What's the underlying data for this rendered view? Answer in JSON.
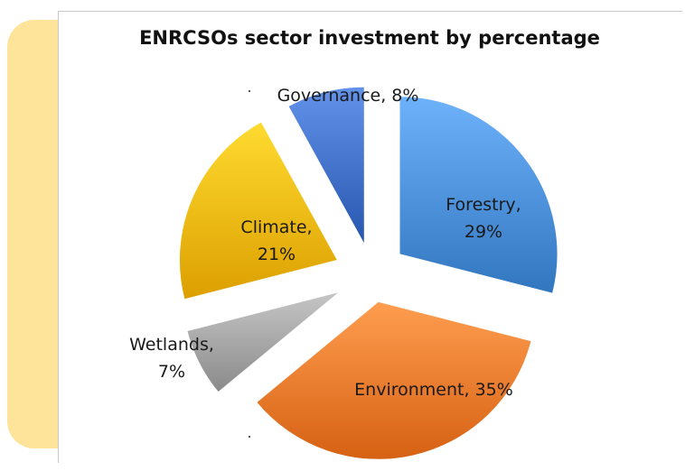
{
  "chart_data": {
    "type": "pie",
    "title": "ENRCSOs sector investment by percentage",
    "slices": [
      {
        "label": "Forestry",
        "value": 29,
        "value_label": "29%",
        "color": "#4a8fd8"
      },
      {
        "label": "Environment",
        "value": 35,
        "value_label": "35%",
        "color": "#ef7a2c"
      },
      {
        "label": "Wetlands",
        "value": 7,
        "value_label": "7%",
        "color": "#a3a3a3"
      },
      {
        "label": "Climate",
        "value": 21,
        "value_label": "21%",
        "color": "#f5b80d"
      },
      {
        "label": "Governance",
        "value": 8,
        "value_label": "8%",
        "color": "#3f6fc6"
      }
    ],
    "legend": "none",
    "exploded": true
  }
}
